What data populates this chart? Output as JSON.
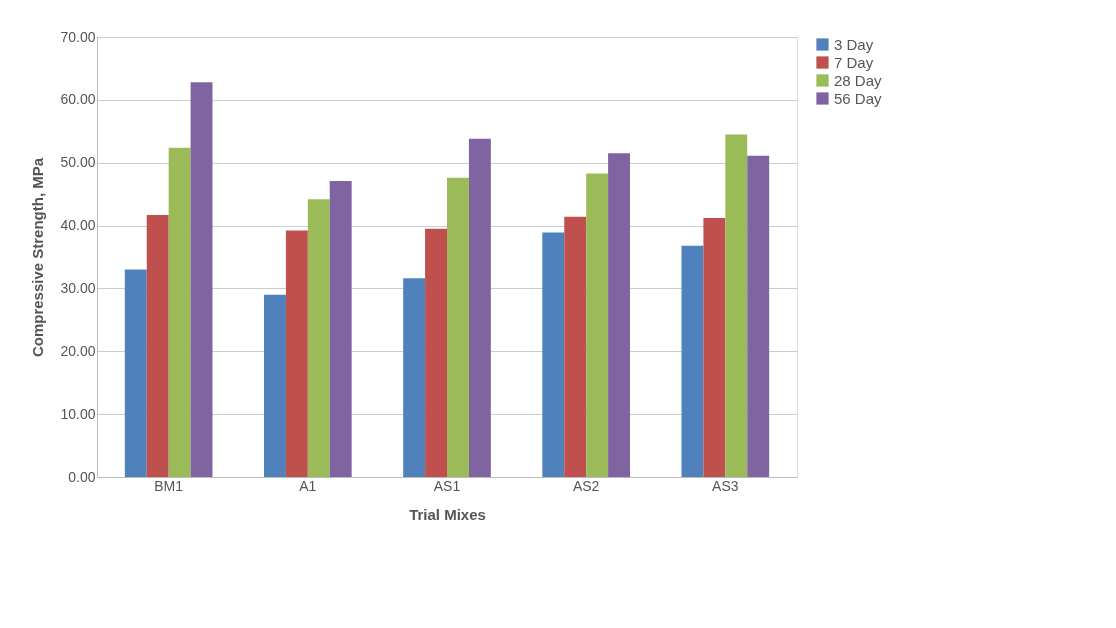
{
  "chart_data": {
    "type": "bar",
    "xlabel": "Trial Mixes",
    "ylabel": "Compressive Strength, MPa",
    "categories": [
      "BM1",
      "A1",
      "AS1",
      "AS2",
      "AS3"
    ],
    "series": [
      {
        "name": "3 Day",
        "color": "#4f81bd",
        "values": [
          33.0,
          29.0,
          31.6,
          38.9,
          36.8
        ]
      },
      {
        "name": "7 Day",
        "color": "#c0504d",
        "values": [
          41.7,
          39.2,
          39.5,
          41.4,
          41.2
        ]
      },
      {
        "name": "28 Day",
        "color": "#9bbb59",
        "values": [
          52.4,
          44.2,
          47.6,
          48.3,
          54.5
        ]
      },
      {
        "name": "56 Day",
        "color": "#8064a2",
        "values": [
          62.8,
          47.1,
          53.8,
          51.5,
          51.1
        ]
      }
    ],
    "ylim": [
      0,
      70
    ],
    "yticks": [
      {
        "value": 0,
        "label": "0.00"
      },
      {
        "value": 10,
        "label": "10.00"
      },
      {
        "value": 20,
        "label": "20.00"
      },
      {
        "value": 30,
        "label": "30.00"
      },
      {
        "value": 40,
        "label": "40.00"
      },
      {
        "value": 50,
        "label": "50.00"
      },
      {
        "value": 60,
        "label": "60.00"
      },
      {
        "value": 70,
        "label": "70.00"
      }
    ],
    "grid": "y",
    "legend": "right"
  }
}
